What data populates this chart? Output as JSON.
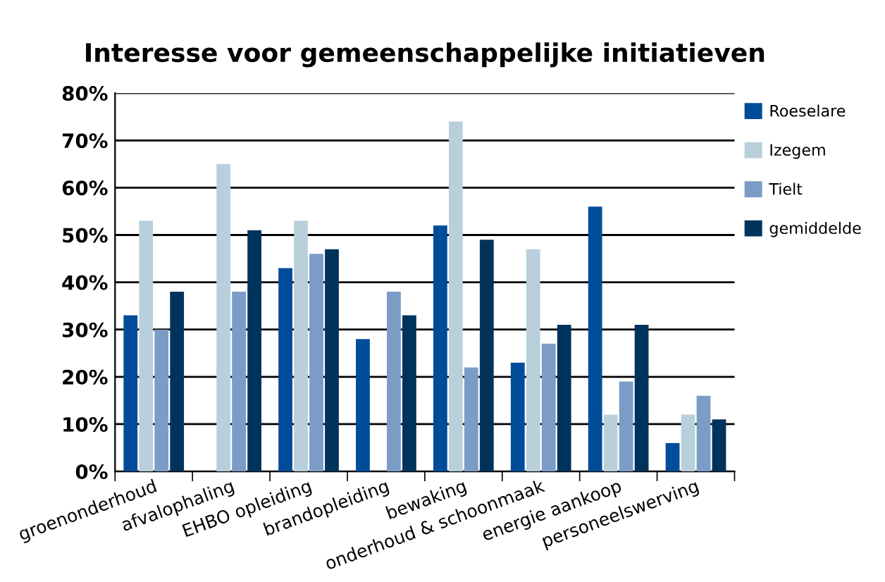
{
  "chart_data": {
    "type": "bar",
    "title": "Interesse voor gemeenschappelijke initiatieven",
    "categories": [
      "groenonderhoud",
      "afvalophaling",
      "EHBO opleiding",
      "brandopleiding",
      "bewaking",
      "onderhoud & schoonmaak",
      "energie aankoop",
      "personeelswerving"
    ],
    "series": [
      {
        "name": "Roeselare",
        "color": "#004c99",
        "values": [
          33,
          null,
          43,
          28,
          52,
          23,
          56,
          6
        ]
      },
      {
        "name": "Izegem",
        "color": "#b9cfdc",
        "values": [
          53,
          65,
          53,
          null,
          74,
          47,
          12,
          12
        ]
      },
      {
        "name": "Tielt",
        "color": "#7a9cc6",
        "values": [
          30,
          38,
          46,
          38,
          22,
          27,
          19,
          16
        ]
      },
      {
        "name": "gemiddelde",
        "color": "#00335c",
        "values": [
          38,
          51,
          47,
          33,
          49,
          31,
          31,
          11
        ]
      }
    ],
    "ylim": [
      0,
      80
    ],
    "yticks": [
      {
        "value": 0,
        "label": "0%"
      },
      {
        "value": 10,
        "label": "10%"
      },
      {
        "value": 20,
        "label": "20%"
      },
      {
        "value": 30,
        "label": "30%"
      },
      {
        "value": 40,
        "label": "40%"
      },
      {
        "value": 50,
        "label": "50%"
      },
      {
        "value": 60,
        "label": "60%"
      },
      {
        "value": 70,
        "label": "70%"
      },
      {
        "value": 80,
        "label": "80%"
      }
    ],
    "grid": "y",
    "legend": "right"
  }
}
